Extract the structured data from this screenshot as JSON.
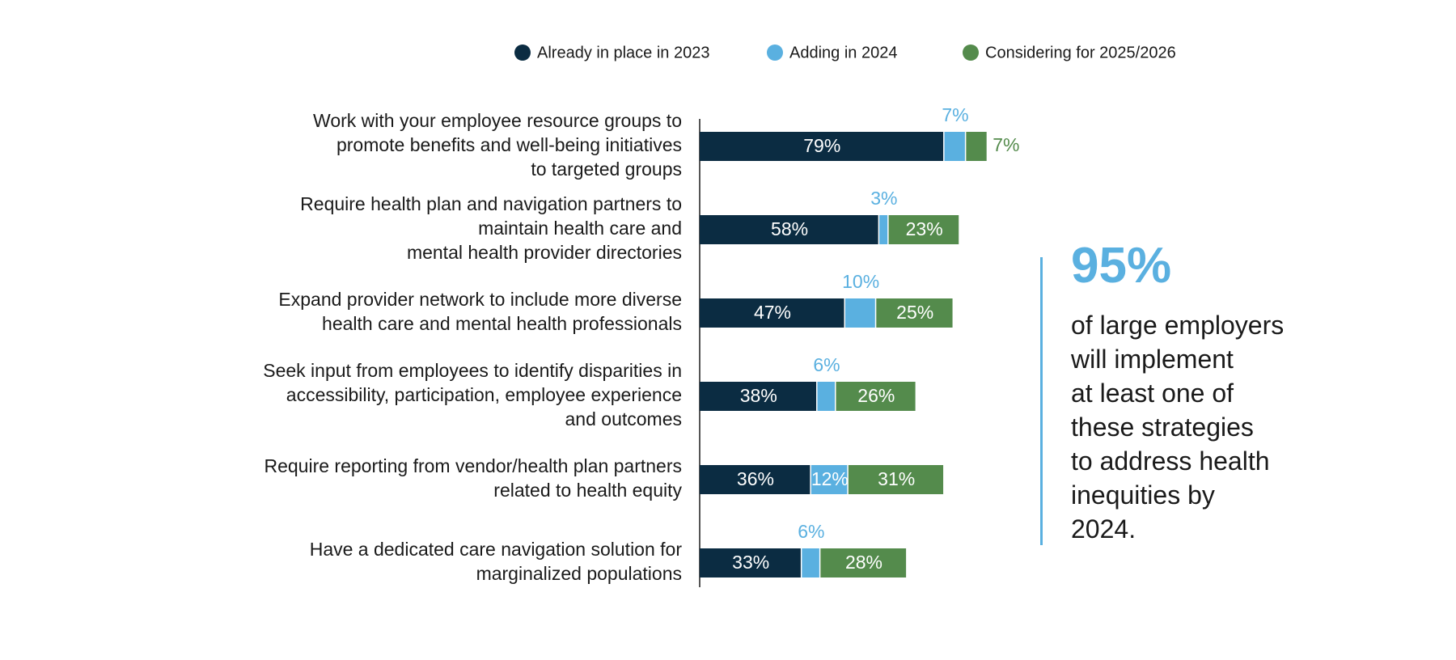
{
  "colors": {
    "already": "#0b2c42",
    "adding": "#5ab0e0",
    "considering": "#548b4c",
    "axis": "#555555",
    "text": "#1a1a1a"
  },
  "chart_data": {
    "type": "bar",
    "orientation": "horizontal",
    "stacked": true,
    "legend_position": "top",
    "grid": false,
    "xlim": [
      0,
      100
    ],
    "unit": "%",
    "categories": [
      [
        "Work with your employee resource groups to",
        "promote benefits and well-being initiatives",
        "to targeted groups"
      ],
      [
        "Require health plan and navigation partners to",
        "maintain health care and",
        "mental health provider directories"
      ],
      [
        "Expand provider network to include more diverse",
        "health care and mental health professionals"
      ],
      [
        "Seek input from employees to identify disparities in",
        "accessibility, participation, employee experience",
        "and outcomes"
      ],
      [
        "Require reporting from vendor/health plan partners",
        "related to health equity"
      ],
      [
        "Have a dedicated care navigation solution for",
        "marginalized populations"
      ]
    ],
    "series": [
      {
        "name": "Already in place in 2023",
        "color": "#0b2c42",
        "values": [
          79,
          58,
          47,
          38,
          36,
          33
        ]
      },
      {
        "name": "Adding in 2024",
        "color": "#5ab0e0",
        "values": [
          7,
          3,
          10,
          6,
          12,
          6
        ]
      },
      {
        "name": "Considering for 2025/2026",
        "color": "#548b4c",
        "values": [
          7,
          23,
          25,
          26,
          31,
          28
        ]
      }
    ]
  },
  "callout": {
    "stat": "95%",
    "lines": [
      "of large employers",
      "will implement",
      "at least one of",
      "these strategies",
      "to address health",
      "inequities by",
      "2024."
    ]
  }
}
